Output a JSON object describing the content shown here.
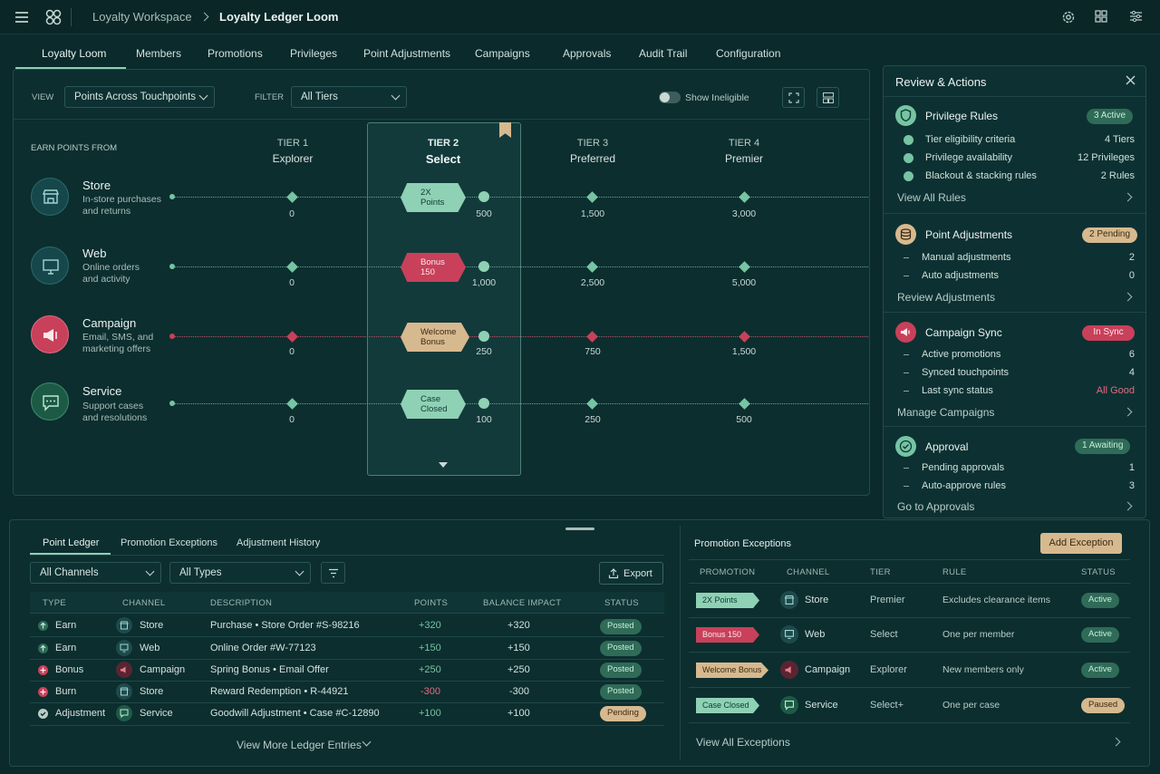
{
  "header": {
    "workspace": "Loyalty Workspace",
    "page": "Loyalty Ledger Loom"
  },
  "nav_tabs": [
    "Loyalty Loom",
    "Members",
    "Promotions",
    "Privileges",
    "Point Adjustments",
    "Campaigns",
    "Approvals",
    "Audit Trail",
    "Configuration"
  ],
  "toolbar": {
    "view_label": "VIEW",
    "view_value": "Points Across Touchpoints",
    "filter_label": "FILTER",
    "filter_value": "All Tiers",
    "toggle_label": "Show Ineligible"
  },
  "loom": {
    "earn_header": "EARN POINTS FROM",
    "tiers": [
      {
        "label": "TIER 1",
        "name": "Explorer"
      },
      {
        "label": "TIER 2",
        "name": "Select"
      },
      {
        "label": "TIER 3",
        "name": "Preferred"
      },
      {
        "label": "TIER 4",
        "name": "Premier"
      }
    ],
    "rows": [
      {
        "name": "Store",
        "desc1": "In-store purchases",
        "desc2": "and returns",
        "chip1": "2X",
        "chip2": "Points",
        "values": [
          "0",
          "500",
          "1,500",
          "3,000"
        ]
      },
      {
        "name": "Web",
        "desc1": "Online orders",
        "desc2": "and activity",
        "chip1": "Bonus",
        "chip2": "150",
        "values": [
          "0",
          "1,000",
          "2,500",
          "5,000"
        ]
      },
      {
        "name": "Campaign",
        "desc1": "Email, SMS, and",
        "desc2": "marketing offers",
        "chip1": "Welcome",
        "chip2": "Bonus",
        "values": [
          "0",
          "250",
          "750",
          "1,500"
        ]
      },
      {
        "name": "Service",
        "desc1": "Support cases",
        "desc2": "and resolutions",
        "chip1": "Case",
        "chip2": "Closed",
        "values": [
          "0",
          "100",
          "250",
          "500"
        ]
      }
    ]
  },
  "review": {
    "title": "Review & Actions",
    "privilege": {
      "title": "Privilege Rules",
      "badge": "3 Active",
      "items": [
        {
          "label": "Tier eligibility criteria",
          "value": "4 Tiers"
        },
        {
          "label": "Privilege availability",
          "value": "12 Privileges"
        },
        {
          "label": "Blackout & stacking rules",
          "value": "2 Rules"
        }
      ],
      "link": "View All Rules"
    },
    "adjust": {
      "title": "Point Adjustments",
      "badge": "2 Pending",
      "items": [
        {
          "label": "Manual adjustments",
          "value": "2"
        },
        {
          "label": "Auto adjustments",
          "value": "0"
        }
      ],
      "link": "Review Adjustments"
    },
    "campaign": {
      "title": "Campaign Sync",
      "badge": "In Sync",
      "items": [
        {
          "label": "Active promotions",
          "value": "6"
        },
        {
          "label": "Synced touchpoints",
          "value": "4"
        },
        {
          "label": "Last sync status",
          "value": "All Good"
        }
      ],
      "link": "Manage Campaigns"
    },
    "approval": {
      "title": "Approval",
      "badge": "1 Awaiting",
      "items": [
        {
          "label": "Pending approvals",
          "value": "1"
        },
        {
          "label": "Auto-approve rules",
          "value": "3"
        }
      ],
      "link": "Go to Approvals"
    }
  },
  "ledger": {
    "tabs": [
      "Point Ledger",
      "Promotion Exceptions",
      "Adjustment History"
    ],
    "channel_filter": "All Channels",
    "type_filter": "All Types",
    "export": "Export",
    "columns": [
      "TYPE",
      "CHANNEL",
      "DESCRIPTION",
      "POINTS",
      "BALANCE IMPACT",
      "STATUS"
    ],
    "rows": [
      {
        "type": "Earn",
        "channel": "Store",
        "desc": "Purchase • Store Order #S-98216",
        "points": "+320",
        "impact": "+320",
        "status": "Posted"
      },
      {
        "type": "Earn",
        "channel": "Web",
        "desc": "Online Order #W-77123",
        "points": "+150",
        "impact": "+150",
        "status": "Posted"
      },
      {
        "type": "Bonus",
        "channel": "Campaign",
        "desc": "Spring Bonus • Email Offer",
        "points": "+250",
        "impact": "+250",
        "status": "Posted"
      },
      {
        "type": "Burn",
        "channel": "Store",
        "desc": "Reward Redemption • R-44921",
        "points": "-300",
        "impact": "-300",
        "status": "Posted"
      },
      {
        "type": "Adjustment",
        "channel": "Service",
        "desc": "Goodwill Adjustment • Case #C-12890",
        "points": "+100",
        "impact": "+100",
        "status": "Pending"
      }
    ],
    "more": "View More Ledger Entries"
  },
  "exceptions": {
    "title": "Promotion Exceptions",
    "add": "Add Exception",
    "columns": [
      "PROMOTION",
      "CHANNEL",
      "TIER",
      "RULE",
      "STATUS"
    ],
    "rows": [
      {
        "promo": "2X Points",
        "channel": "Store",
        "tier": "Premier",
        "rule": "Excludes clearance items",
        "status": "Active"
      },
      {
        "promo": "Bonus 150",
        "channel": "Web",
        "tier": "Select",
        "rule": "One per member",
        "status": "Active"
      },
      {
        "promo": "Welcome Bonus",
        "channel": "Campaign",
        "tier": "Explorer",
        "rule": "New members only",
        "status": "Active"
      },
      {
        "promo": "Case Closed",
        "channel": "Service",
        "tier": "Select+",
        "rule": "One per case",
        "status": "Paused"
      }
    ],
    "link": "View All Exceptions"
  },
  "colors": {
    "teal": "#76c4a3",
    "red": "#c9405a",
    "tan": "#d7b98f",
    "bg": "#0b2a2b"
  }
}
